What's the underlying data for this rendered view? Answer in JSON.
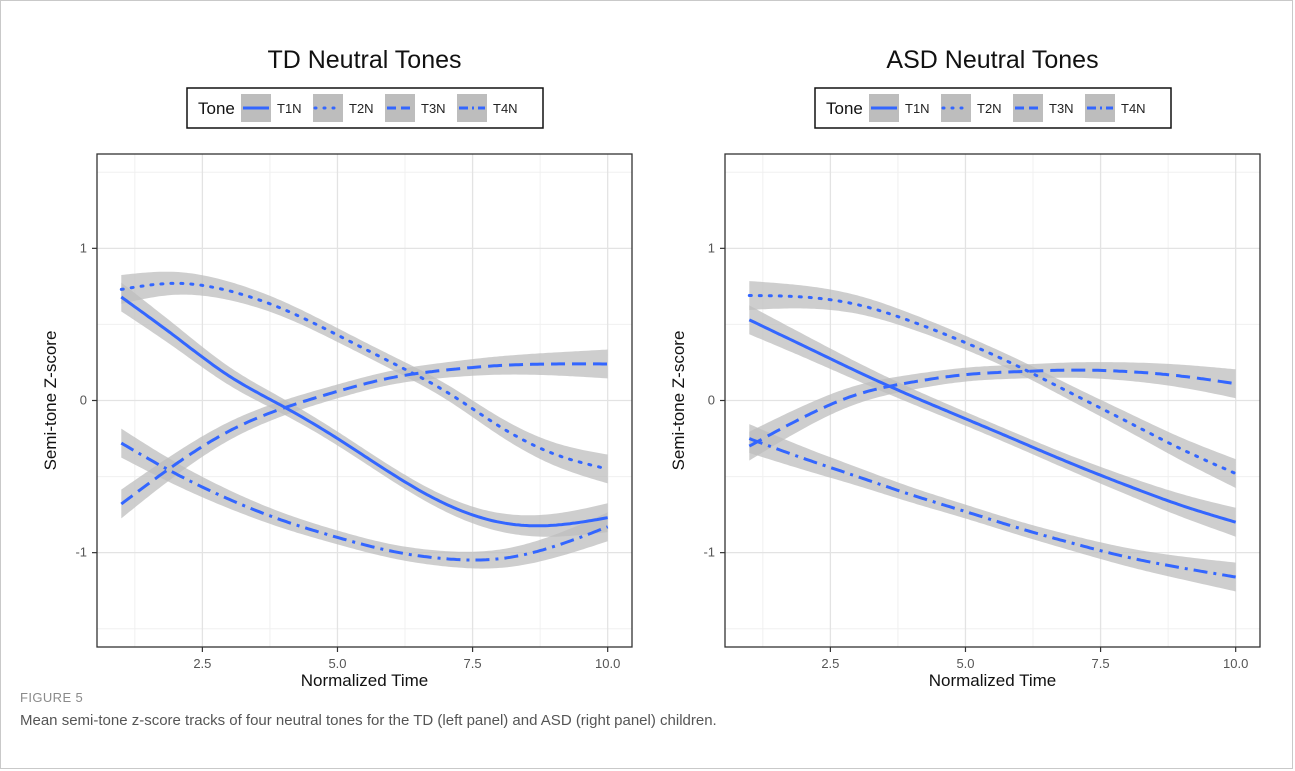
{
  "figure": {
    "label": "FIGURE 5",
    "caption": "Mean semi-tone z-score tracks of four neutral tones for the TD (left panel) and ASD (right panel) children."
  },
  "legend": {
    "title": "Tone",
    "line_color": "#3366ff",
    "band_color": "#bdbdbd"
  },
  "chart_data": [
    {
      "type": "line",
      "title": "TD Neutral Tones",
      "xlabel": "Normalized Time",
      "ylabel": "Semi-tone Z-score",
      "xlim": [
        0.55,
        10.45
      ],
      "ylim": [
        -1.62,
        1.62
      ],
      "x_ticks": [
        2.5,
        5.0,
        7.5,
        10.0
      ],
      "x_tick_labels": [
        "2.5",
        "5.0",
        "7.5",
        "10.0"
      ],
      "y_ticks": [
        -1,
        0,
        1
      ],
      "y_tick_labels": [
        "-1",
        "0",
        "1"
      ],
      "grid": true,
      "legend_position": "top",
      "x": [
        1,
        2,
        3,
        4,
        5,
        6,
        7,
        8,
        9,
        10
      ],
      "series": [
        {
          "name": "T1N",
          "linestyle": "solid",
          "values": [
            0.68,
            0.42,
            0.16,
            -0.04,
            -0.25,
            -0.48,
            -0.68,
            -0.8,
            -0.82,
            -0.77
          ]
        },
        {
          "name": "T2N",
          "linestyle": "dotted",
          "values": [
            0.73,
            0.77,
            0.72,
            0.6,
            0.43,
            0.25,
            0.06,
            -0.17,
            -0.35,
            -0.45
          ]
        },
        {
          "name": "T3N",
          "linestyle": "dashed",
          "values": [
            -0.68,
            -0.42,
            -0.2,
            -0.05,
            0.06,
            0.15,
            0.2,
            0.23,
            0.24,
            0.24
          ]
        },
        {
          "name": "T4N",
          "linestyle": "dashdot",
          "values": [
            -0.28,
            -0.48,
            -0.65,
            -0.79,
            -0.9,
            -0.99,
            -1.04,
            -1.04,
            -0.96,
            -0.83
          ]
        }
      ]
    },
    {
      "type": "line",
      "title": "ASD Neutral Tones",
      "xlabel": "Normalized Time",
      "ylabel": "Semi-tone Z-score",
      "xlim": [
        0.55,
        10.45
      ],
      "ylim": [
        -1.62,
        1.62
      ],
      "x_ticks": [
        2.5,
        5.0,
        7.5,
        10.0
      ],
      "x_tick_labels": [
        "2.5",
        "5.0",
        "7.5",
        "10.0"
      ],
      "y_ticks": [
        -1,
        0,
        1
      ],
      "y_tick_labels": [
        "-1",
        "0",
        "1"
      ],
      "grid": true,
      "legend_position": "top",
      "x": [
        1,
        2,
        3,
        4,
        5,
        6,
        7,
        8,
        9,
        10
      ],
      "series": [
        {
          "name": "T1N",
          "linestyle": "solid",
          "values": [
            0.53,
            0.36,
            0.19,
            0.03,
            -0.12,
            -0.27,
            -0.42,
            -0.56,
            -0.69,
            -0.8
          ]
        },
        {
          "name": "T2N",
          "linestyle": "dotted",
          "values": [
            0.69,
            0.68,
            0.63,
            0.52,
            0.38,
            0.22,
            0.04,
            -0.14,
            -0.32,
            -0.48
          ]
        },
        {
          "name": "T3N",
          "linestyle": "dashed",
          "values": [
            -0.3,
            -0.11,
            0.04,
            0.12,
            0.17,
            0.19,
            0.2,
            0.19,
            0.16,
            0.11
          ]
        },
        {
          "name": "T4N",
          "linestyle": "dashdot",
          "values": [
            -0.25,
            -0.38,
            -0.5,
            -0.62,
            -0.73,
            -0.84,
            -0.94,
            -1.03,
            -1.1,
            -1.16
          ]
        }
      ]
    }
  ]
}
